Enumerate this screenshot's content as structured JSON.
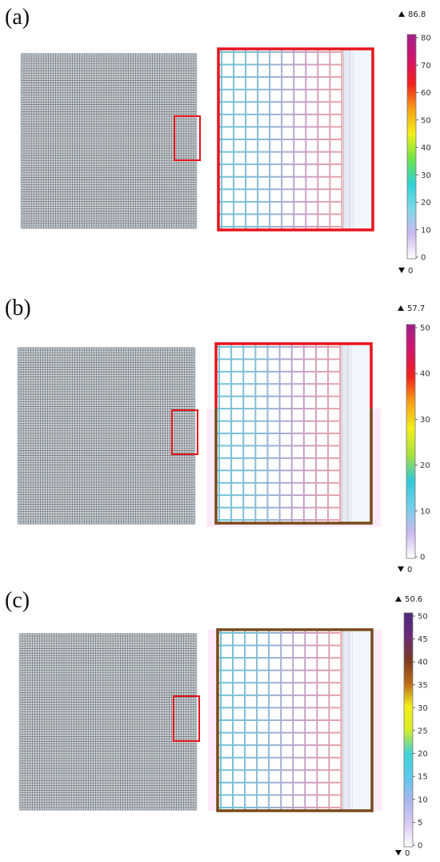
{
  "panels": [
    {
      "label": "(a)",
      "colorbar": {
        "max_label": "86.8",
        "min_label": "0",
        "ticks": [
          "80",
          "70",
          "60",
          "50",
          "40",
          "30",
          "20",
          "10",
          "0"
        ],
        "stops": [
          "#ffffff",
          "#cdb8ee",
          "#7fd8e8",
          "#31d0d5",
          "#6ee24a",
          "#f2ef1a",
          "#f8a116",
          "#f0201a",
          "#d4146a",
          "#a0208a"
        ]
      },
      "inset_frame_color": "#e8141c",
      "zoom_frame_color": "#e8141c"
    },
    {
      "label": "(b)",
      "colorbar": {
        "max_label": "57.7",
        "min_label": "0",
        "ticks": [
          "50",
          "40",
          "30",
          "20",
          "10",
          "0"
        ],
        "stops": [
          "#ffffff",
          "#cdb8ee",
          "#6ed0ea",
          "#31c8d8",
          "#a8e23a",
          "#f2ef1a",
          "#f8a116",
          "#f0201a",
          "#d4146a",
          "#a0208a"
        ]
      },
      "inset_frame_color": "#e8141c",
      "zoom_frame_color": "#e8141c",
      "zoom_frame_color_lower": "#7a4a1c"
    },
    {
      "label": "(c)",
      "colorbar": {
        "max_label": "50.6",
        "min_label": "0",
        "ticks": [
          "50",
          "45",
          "40",
          "35",
          "30",
          "25",
          "20",
          "15",
          "10",
          "5",
          "0"
        ],
        "stops": [
          "#ffffff",
          "#d8c8f2",
          "#a9b6ee",
          "#5cc8ec",
          "#3fd4d8",
          "#d6ec24",
          "#f4ef1a",
          "#b86a1a",
          "#7a3a22",
          "#6a2a7a",
          "#4a2a7a"
        ]
      },
      "inset_frame_color": "#e8141c",
      "zoom_frame_color": "#7a4a1c"
    }
  ]
}
